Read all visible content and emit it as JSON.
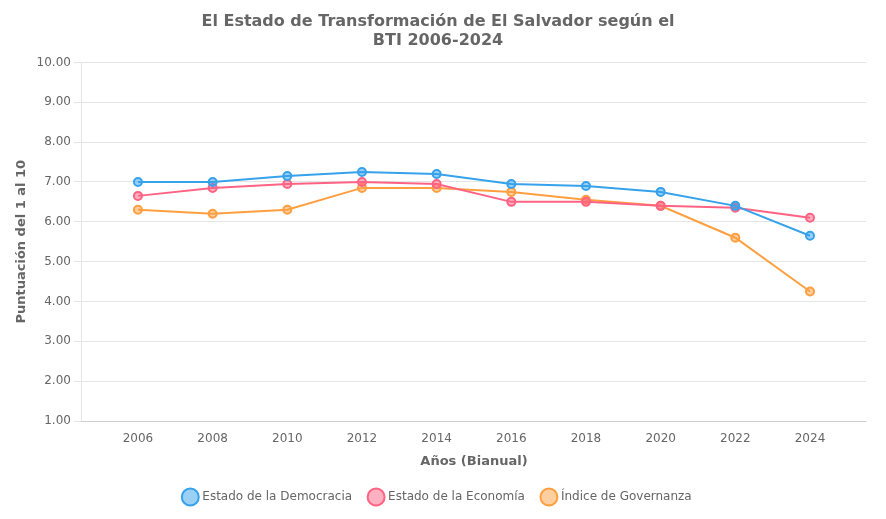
{
  "chart_data": {
    "type": "line",
    "title": "El Estado de Transformación de El Salvador según el\nBTI 2006-2024",
    "xlabel": "Años (Bianual)",
    "ylabel": "Puntuación del 1 al 10",
    "x": [
      2006,
      2008,
      2010,
      2012,
      2014,
      2016,
      2018,
      2020,
      2022,
      2024
    ],
    "series": [
      {
        "name": "Estado de la Democracia",
        "marker": "circle",
        "values": [
          7.0,
          7.0,
          7.15,
          7.25,
          7.2,
          6.95,
          6.9,
          6.75,
          6.4,
          5.65
        ]
      },
      {
        "name": "Estado de la Economía",
        "marker": "circle",
        "values": [
          6.65,
          6.85,
          6.95,
          7.0,
          6.95,
          6.5,
          6.5,
          6.4,
          6.35,
          6.1
        ]
      },
      {
        "name": "Índice de Governanza",
        "marker": "circle",
        "values": [
          6.3,
          6.2,
          6.3,
          6.85,
          6.85,
          6.75,
          6.55,
          6.4,
          5.6,
          4.25
        ]
      }
    ],
    "xlim": [
      2004.5,
      2025.5
    ],
    "xticks": [
      2006,
      2008,
      2010,
      2012,
      2014,
      2016,
      2018,
      2020,
      2022,
      2024
    ],
    "ylim": [
      1.0,
      10.0
    ],
    "yticks": [
      {
        "value": 1,
        "label": "1.00"
      },
      {
        "value": 2,
        "label": "2.00"
      },
      {
        "value": 3,
        "label": "3.00"
      },
      {
        "value": 4,
        "label": "4.00"
      },
      {
        "value": 5,
        "label": "5.00"
      },
      {
        "value": 6,
        "label": "6.00"
      },
      {
        "value": 7,
        "label": "7.00"
      },
      {
        "value": 8,
        "label": "8.00"
      },
      {
        "value": 9,
        "label": "9.00"
      },
      {
        "value": 10,
        "label": "10.00"
      }
    ],
    "grid": "y",
    "legend": "bottom"
  }
}
